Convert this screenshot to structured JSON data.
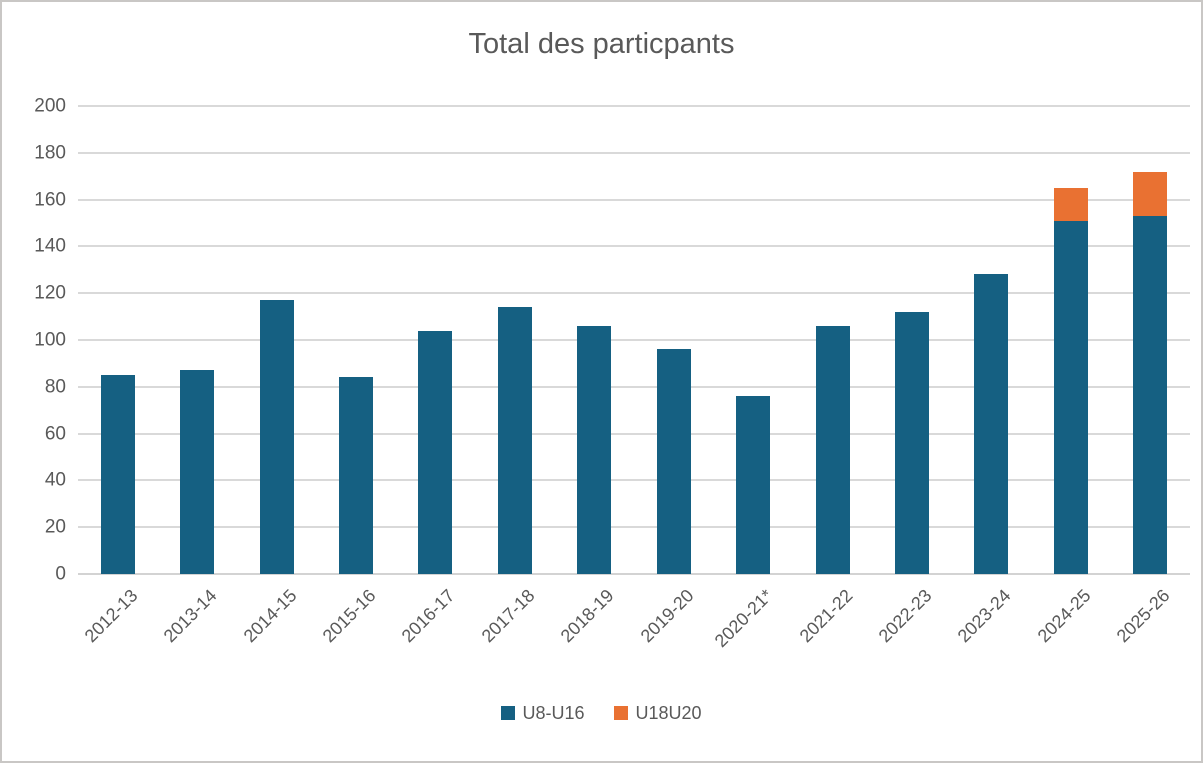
{
  "chart_data": {
    "type": "bar",
    "stacked": true,
    "title": "Total des particpants",
    "categories": [
      "2012-13",
      "2013-14",
      "2014-15",
      "2015-16",
      "2016-17",
      "2017-18",
      "2018-19",
      "2019-20",
      "2020-21*",
      "2021-22",
      "2022-23",
      "2023-24",
      "2024-25",
      "2025-26"
    ],
    "series": [
      {
        "name": "U8-U16",
        "color": "#156082",
        "values": [
          85,
          87,
          117,
          84,
          104,
          114,
          106,
          96,
          76,
          106,
          112,
          128,
          151,
          153
        ]
      },
      {
        "name": "U18U20",
        "color": "#E97132",
        "values": [
          0,
          0,
          0,
          0,
          0,
          0,
          0,
          0,
          0,
          0,
          0,
          0,
          14,
          19
        ]
      }
    ],
    "ylim": [
      0,
      200
    ],
    "yticks": [
      0,
      20,
      40,
      60,
      80,
      100,
      120,
      140,
      160,
      180,
      200
    ],
    "grid": true,
    "legend_position": "bottom",
    "colors": {
      "title_text": "#595959",
      "axis_text": "#595959",
      "gridline": "#D9D9D9",
      "background": "#FFFFFF",
      "border": "#C9C7C5"
    }
  }
}
